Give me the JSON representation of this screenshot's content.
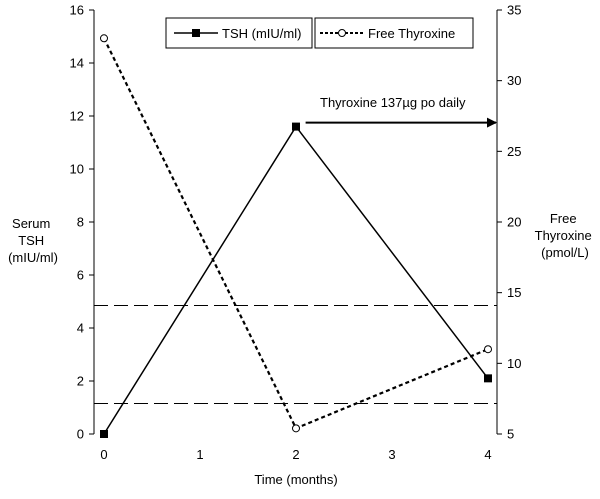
{
  "chart_data": {
    "type": "line",
    "x": [
      0,
      2,
      4
    ],
    "xlabel": "Time (months)",
    "xlim": [
      0,
      4
    ],
    "x_ticks": [
      "0",
      "1",
      "2",
      "3",
      "4"
    ],
    "ylabel_left": [
      "Serum",
      "TSH",
      "(mIU/ml)"
    ],
    "ylim_left": [
      0,
      16
    ],
    "y_ticks_left": [
      "0",
      "2",
      "4",
      "6",
      "8",
      "10",
      "12",
      "14",
      "16"
    ],
    "ylabel_right": [
      "Free",
      "Thyroxine",
      "(pmol/L)"
    ],
    "ylim_right": [
      5,
      35
    ],
    "y_ticks_right": [
      "5",
      "10",
      "15",
      "20",
      "25",
      "30",
      "35"
    ],
    "series": [
      {
        "name": "TSH (mIU/ml)",
        "axis": "left",
        "values": [
          0,
          11.6,
          2.1
        ],
        "line_style": "solid",
        "marker": "filled-square"
      },
      {
        "name": "Free Thyroxine",
        "axis": "right",
        "values": [
          33.0,
          5.4,
          11.0
        ],
        "line_style": "dotted",
        "marker": "open-circle"
      }
    ],
    "reference_lines": [
      {
        "axis": "left",
        "value": 4.85,
        "style": "dashed"
      },
      {
        "axis": "left",
        "value": 1.15,
        "style": "dashed"
      }
    ],
    "annotation": {
      "text": "Thyroxine 137µg po daily",
      "from_x": 2.1,
      "to_x": 4,
      "y_left": 11.75
    },
    "legend_position": "top-center",
    "grid": false
  }
}
